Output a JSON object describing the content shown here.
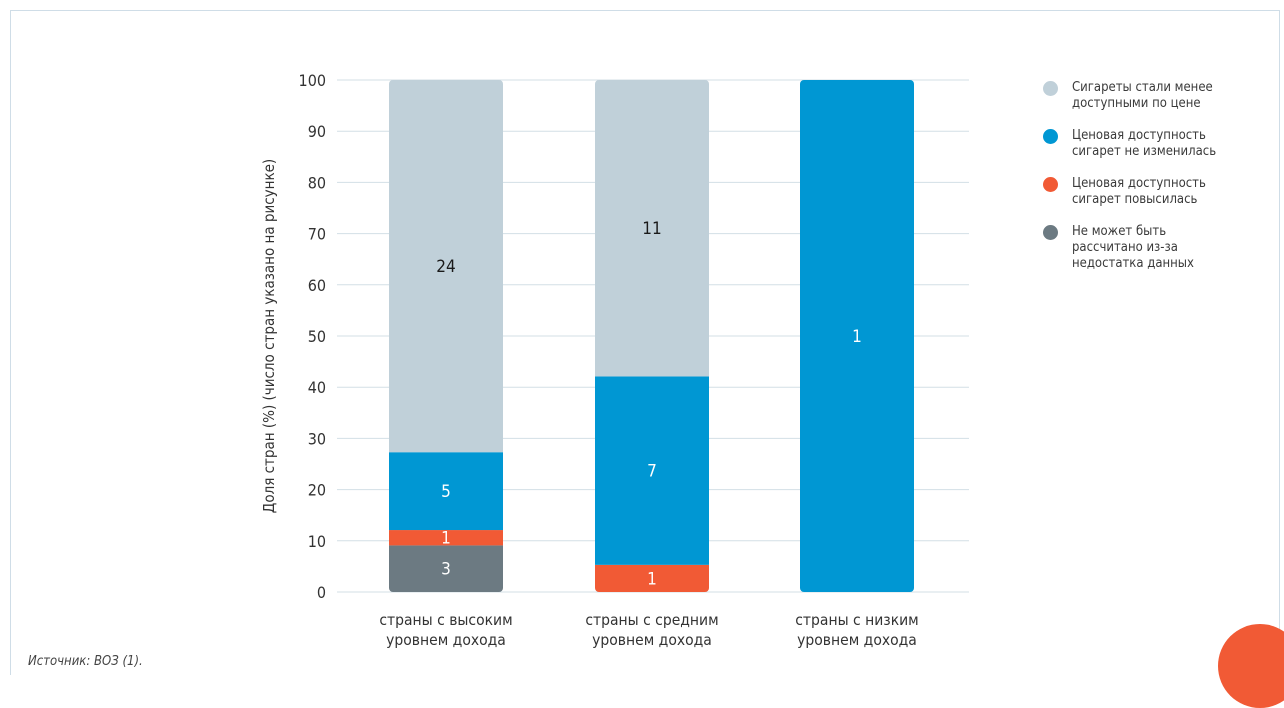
{
  "source_note": "Источник: ВОЗ (1).",
  "chart_data": {
    "type": "bar",
    "stacked": true,
    "ylabel": "Доля стран (%) (число стран указано на рисунке)",
    "xlabel": "",
    "ylim": [
      0,
      100
    ],
    "yticks": [
      0,
      10,
      20,
      30,
      40,
      50,
      60,
      70,
      80,
      90,
      100
    ],
    "grid": true,
    "legend_position": "right",
    "categories": [
      "страны с высоким\nуровнем дохода",
      "страны с средним\nуровнем дохода",
      "страны с низким\nуровнем дохода"
    ],
    "series": [
      {
        "name": "Не может быть\nрассчитано из-за\nнедостатка данных",
        "color": "#6c7a82",
        "values": [
          9.1,
          0,
          0
        ],
        "labels": [
          "3",
          "",
          ""
        ],
        "label_color": "#ffffff"
      },
      {
        "name": "Ценовая доступность\nсигарет повысилась",
        "color": "#f15a35",
        "values": [
          3.0,
          5.3,
          0
        ],
        "labels": [
          "1",
          "1",
          ""
        ],
        "label_color": "#ffffff"
      },
      {
        "name": "Ценовая доступность\nсигарет не изменилась",
        "color": "#0097d3",
        "values": [
          15.2,
          36.8,
          100
        ],
        "labels": [
          "5",
          "7",
          "1"
        ],
        "label_color": "#ffffff"
      },
      {
        "name": "Сигареты стали менее\nдоступными по цене",
        "color": "#c0d0d9",
        "values": [
          72.7,
          57.9,
          0
        ],
        "labels": [
          "24",
          "11",
          ""
        ],
        "label_color": "#1a1a1a"
      }
    ],
    "legend_order": [
      3,
      2,
      1,
      0
    ]
  }
}
